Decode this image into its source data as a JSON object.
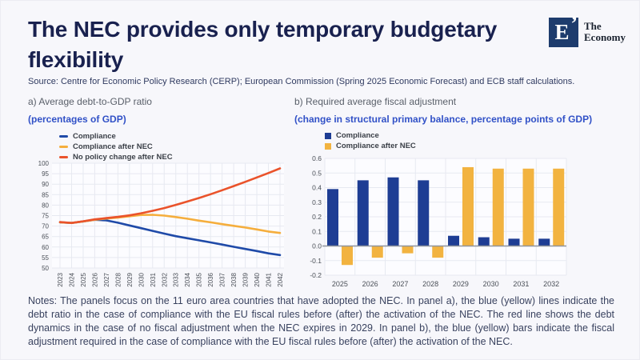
{
  "slide": {
    "title": "The NEC provides only temporary budgetary flexibility",
    "source": "Source: Centre for Economic Policy Research (CERP); European Commission (Spring 2025 Economic Forecast) and ECB staff calculations.",
    "notes": "Notes: The panels focus on the 11 euro area countries that have adopted the NEC. In panel a), the blue (yellow) lines indicate the debt ratio in the case of compliance with the EU fiscal rules before (after) the activation of the NEC. The red line shows the debt dynamics in the case of no fiscal adjustment when the NEC expires in 2029. In panel b), the blue (yellow) bars indicate the fiscal adjustment required in the case of compliance with the EU fiscal rules before (after) the activation of the NEC."
  },
  "logo": {
    "mark": "E",
    "apostrophe": "’",
    "name_line1": "The",
    "name_line2": "Economy"
  },
  "panel_a": {
    "title": "a) Average debt-to-GDP ratio",
    "subtitle": "(percentages of GDP)"
  },
  "panel_b": {
    "title": "b) Required average fiscal adjustment",
    "subtitle": "(change in structural primary balance, percentage points of GDP)"
  },
  "colors": {
    "background": "#f7f7fb",
    "plot_bg": "#fcfcff",
    "gridline": "#e7e9f1",
    "axis_text": "#4a4f57",
    "zero_line": "#8f949c",
    "line_blue": "#1f4aa8",
    "line_yellow": "#f5ae3d",
    "line_red": "#ea532b",
    "bar_blue": "#1e3d94",
    "bar_yellow": "#f2b340"
  },
  "chart_data": [
    {
      "type": "line",
      "title": "a) Average debt-to-GDP ratio",
      "subtitle": "(percentages of GDP)",
      "x": [
        "2023",
        "2024",
        "2025",
        "2026",
        "2027",
        "2028",
        "2029",
        "2030",
        "2031",
        "2032",
        "2033",
        "2034",
        "2035",
        "2036",
        "2037",
        "2038",
        "2039",
        "2040",
        "2041",
        "2042"
      ],
      "series": [
        {
          "name": "Compliance",
          "color": "#1f4aa8",
          "values": [
            71.8,
            71.5,
            72.2,
            73.0,
            72.7,
            71.6,
            70.3,
            69.0,
            67.7,
            66.4,
            65.2,
            64.2,
            63.2,
            62.2,
            61.2,
            60.1,
            59.1,
            58.1,
            57.0,
            56.2
          ]
        },
        {
          "name": "Compliance after NEC",
          "color": "#f5ae3d",
          "values": [
            71.8,
            71.5,
            72.2,
            73.0,
            73.6,
            74.1,
            74.7,
            75.3,
            75.4,
            75.0,
            74.3,
            73.5,
            72.6,
            71.8,
            70.9,
            70.1,
            69.3,
            68.4,
            67.4,
            66.7
          ]
        },
        {
          "name": "No policy change after NEC",
          "color": "#ea532b",
          "values": [
            71.9,
            71.5,
            72.3,
            73.2,
            73.8,
            74.4,
            75.1,
            76.1,
            77.3,
            78.6,
            80.1,
            81.7,
            83.4,
            85.2,
            87.1,
            89.1,
            91.1,
            93.2,
            95.3,
            97.5
          ]
        }
      ],
      "ylim": [
        50,
        100
      ],
      "yticks": [
        100,
        95,
        90,
        85,
        80,
        75,
        70,
        65,
        60,
        55,
        50
      ],
      "grid": true,
      "legend_position": "top-left"
    },
    {
      "type": "bar",
      "title": "b) Required average fiscal adjustment",
      "subtitle": "(change in structural primary balance, percentage points of GDP)",
      "categories": [
        "2025",
        "2026",
        "2027",
        "2028",
        "2029",
        "2030",
        "2031",
        "2032"
      ],
      "series": [
        {
          "name": "Compliance",
          "color": "#1e3d94",
          "values": [
            0.39,
            0.45,
            0.47,
            0.45,
            0.07,
            0.06,
            0.05,
            0.05
          ]
        },
        {
          "name": "Compliance after NEC",
          "color": "#f2b340",
          "values": [
            -0.13,
            -0.08,
            -0.05,
            -0.08,
            0.54,
            0.53,
            0.53,
            0.53
          ]
        }
      ],
      "ylim": [
        -0.2,
        0.6
      ],
      "yticks": [
        "0.6",
        "0.5",
        "0.4",
        "0.3",
        "0.2",
        "0.1",
        "0.0",
        "-0.1",
        "-0.2"
      ],
      "grid": true,
      "legend_position": "top-left"
    }
  ]
}
